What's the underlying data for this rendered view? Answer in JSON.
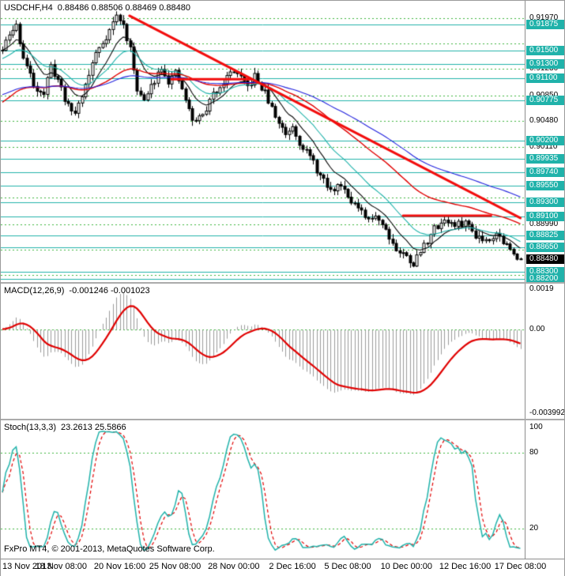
{
  "header": {
    "symbol": "USDCHF,H4",
    "quote": "0.88486 0.88506 0.88469 0.88480"
  },
  "footer": "FxPro MT4, © 2001-2013, MetaQuotes Software Corp.",
  "macd": {
    "name": "MACD(12,26,9)",
    "values": "-0.001246 -0.001023",
    "scale_max": 0.0019,
    "scale_min": -0.003992,
    "scale_labels": [
      {
        "text": "0.0019",
        "v": 0.0019
      },
      {
        "text": "0.00",
        "v": 0
      },
      {
        "text": "-0.003992",
        "v": -0.003992
      }
    ]
  },
  "stoch": {
    "name": "Stoch(13,3,3)",
    "values": "23.2613 25.5866",
    "scale_labels": [
      {
        "text": "100",
        "v": 100
      },
      {
        "text": "80",
        "v": 80
      },
      {
        "text": "20",
        "v": 20
      }
    ],
    "level_lines": [
      80,
      20
    ]
  },
  "time_axis": {
    "labels": [
      {
        "bar": 0,
        "text": "13 Nov 2013"
      },
      {
        "bar": 17,
        "text": "18 Nov 08:00"
      },
      {
        "bar": 34,
        "text": "20 Nov 16:00"
      },
      {
        "bar": 50,
        "text": "25 Nov 08:00"
      },
      {
        "bar": 67,
        "text": "28 Nov 00:00"
      },
      {
        "bar": 84,
        "text": "2 Dec 16:00"
      },
      {
        "bar": 100,
        "text": "5 Dec 08:00"
      },
      {
        "bar": 117,
        "text": "10 Dec 00:00"
      },
      {
        "bar": 134,
        "text": "12 Dec 16:00"
      },
      {
        "bar": 150,
        "text": "17 Dec 08:00"
      }
    ]
  },
  "colors": {
    "background": "#ffffff",
    "grid": "#3cb43c",
    "level": "#20b2aa",
    "object_red": "#f20d0d",
    "candle": "#000000",
    "bull_fill": "#ffffff",
    "bear_fill": "#000000",
    "ma_fast": "#0a0a0a",
    "ma_mid": "#20b2aa",
    "ma_slow": "#e00000",
    "ma_slowest": "#2222dd",
    "histogram": "#9b9b9b",
    "signal": "#e00000",
    "stoch_k": "#20b2aa",
    "stoch_d": "#e00000",
    "scale_text": "#000000",
    "badge_text": "#ffffff",
    "current_badge_bg": "#000000",
    "separator": "#ababab"
  },
  "chart_data": {
    "type": "candlestick",
    "symbol": "USDCHF",
    "timeframe": "H4",
    "bars": 151,
    "price_axis": {
      "min": 0.88197,
      "max": 0.92126,
      "grid_prices": [
        0.9197,
        0.916,
        0.9123,
        0.9085,
        0.9048,
        0.9011,
        0.8974,
        0.8937,
        0.8899,
        0.8862,
        0.8825
      ],
      "tick_labels": [
        0.9197,
        0.9123,
        0.9085,
        0.9048,
        0.9011,
        0.8899
      ]
    },
    "levels": [
      0.91875,
      0.915,
      0.913,
      0.911,
      0.90775,
      0.902,
      0.89935,
      0.8974,
      0.8955,
      0.893,
      0.891,
      0.88825,
      0.8865,
      0.883,
      0.882
    ],
    "current_price": 0.8848,
    "last_candle": {
      "o": 0.88486,
      "h": 0.88506,
      "l": 0.88469,
      "c": 0.8848
    },
    "close_anchors": [
      [
        0,
        0.915
      ],
      [
        2,
        0.9172
      ],
      [
        4,
        0.9186
      ],
      [
        6,
        0.914
      ],
      [
        9,
        0.91
      ],
      [
        12,
        0.9088
      ],
      [
        14,
        0.9126
      ],
      [
        16,
        0.9108
      ],
      [
        19,
        0.9068
      ],
      [
        21,
        0.906
      ],
      [
        24,
        0.91
      ],
      [
        27,
        0.9146
      ],
      [
        30,
        0.917
      ],
      [
        33,
        0.92
      ],
      [
        35,
        0.9186
      ],
      [
        37,
        0.915
      ],
      [
        39,
        0.9096
      ],
      [
        41,
        0.9076
      ],
      [
        44,
        0.9108
      ],
      [
        46,
        0.9128
      ],
      [
        48,
        0.9106
      ],
      [
        50,
        0.9116
      ],
      [
        52,
        0.9094
      ],
      [
        55,
        0.9048
      ],
      [
        58,
        0.9056
      ],
      [
        61,
        0.9086
      ],
      [
        64,
        0.9106
      ],
      [
        67,
        0.9122
      ],
      [
        69,
        0.9108
      ],
      [
        71,
        0.9096
      ],
      [
        73,
        0.9112
      ],
      [
        76,
        0.9088
      ],
      [
        79,
        0.9054
      ],
      [
        82,
        0.903
      ],
      [
        84,
        0.9042
      ],
      [
        86,
        0.9018
      ],
      [
        89,
        0.8996
      ],
      [
        92,
        0.8968
      ],
      [
        95,
        0.8946
      ],
      [
        98,
        0.8958
      ],
      [
        100,
        0.8942
      ],
      [
        103,
        0.892
      ],
      [
        106,
        0.8902
      ],
      [
        108,
        0.8914
      ],
      [
        111,
        0.8892
      ],
      [
        114,
        0.8862
      ],
      [
        117,
        0.8852
      ],
      [
        119,
        0.8842
      ],
      [
        122,
        0.8868
      ],
      [
        125,
        0.8892
      ],
      [
        128,
        0.8906
      ],
      [
        131,
        0.8896
      ],
      [
        134,
        0.8902
      ],
      [
        137,
        0.8884
      ],
      [
        140,
        0.8876
      ],
      [
        143,
        0.8886
      ],
      [
        146,
        0.8868
      ],
      [
        148,
        0.8854
      ],
      [
        150,
        0.8848
      ]
    ],
    "noise": 0.0011,
    "seed": 11,
    "trendline": {
      "from_bar": 36.8,
      "from_price": 0.92001,
      "to_bar": 150,
      "to_price": 0.89077
    },
    "segments": [
      {
        "from_bar": 49,
        "to_bar": 72,
        "price": 0.91085
      },
      {
        "from_bar": 116,
        "to_bar": 141.5,
        "price": 0.8911
      }
    ],
    "moving_averages": [
      {
        "period": 10,
        "color_key": "ma_fast",
        "bias": 0,
        "width": 1.1
      },
      {
        "period": 21,
        "color_key": "ma_mid",
        "bias": -0.0012,
        "width": 1.1
      },
      {
        "period": 50,
        "color_key": "ma_slow",
        "bias": -0.0075,
        "width": 1.4
      },
      {
        "period": 89,
        "color_key": "ma_slowest",
        "bias": -0.0064,
        "width": 1.1
      }
    ],
    "macd_params": {
      "fast": 12,
      "slow": 26,
      "signal": 9
    },
    "stoch_params": {
      "k": 13,
      "slowing": 3,
      "d": 3
    }
  }
}
